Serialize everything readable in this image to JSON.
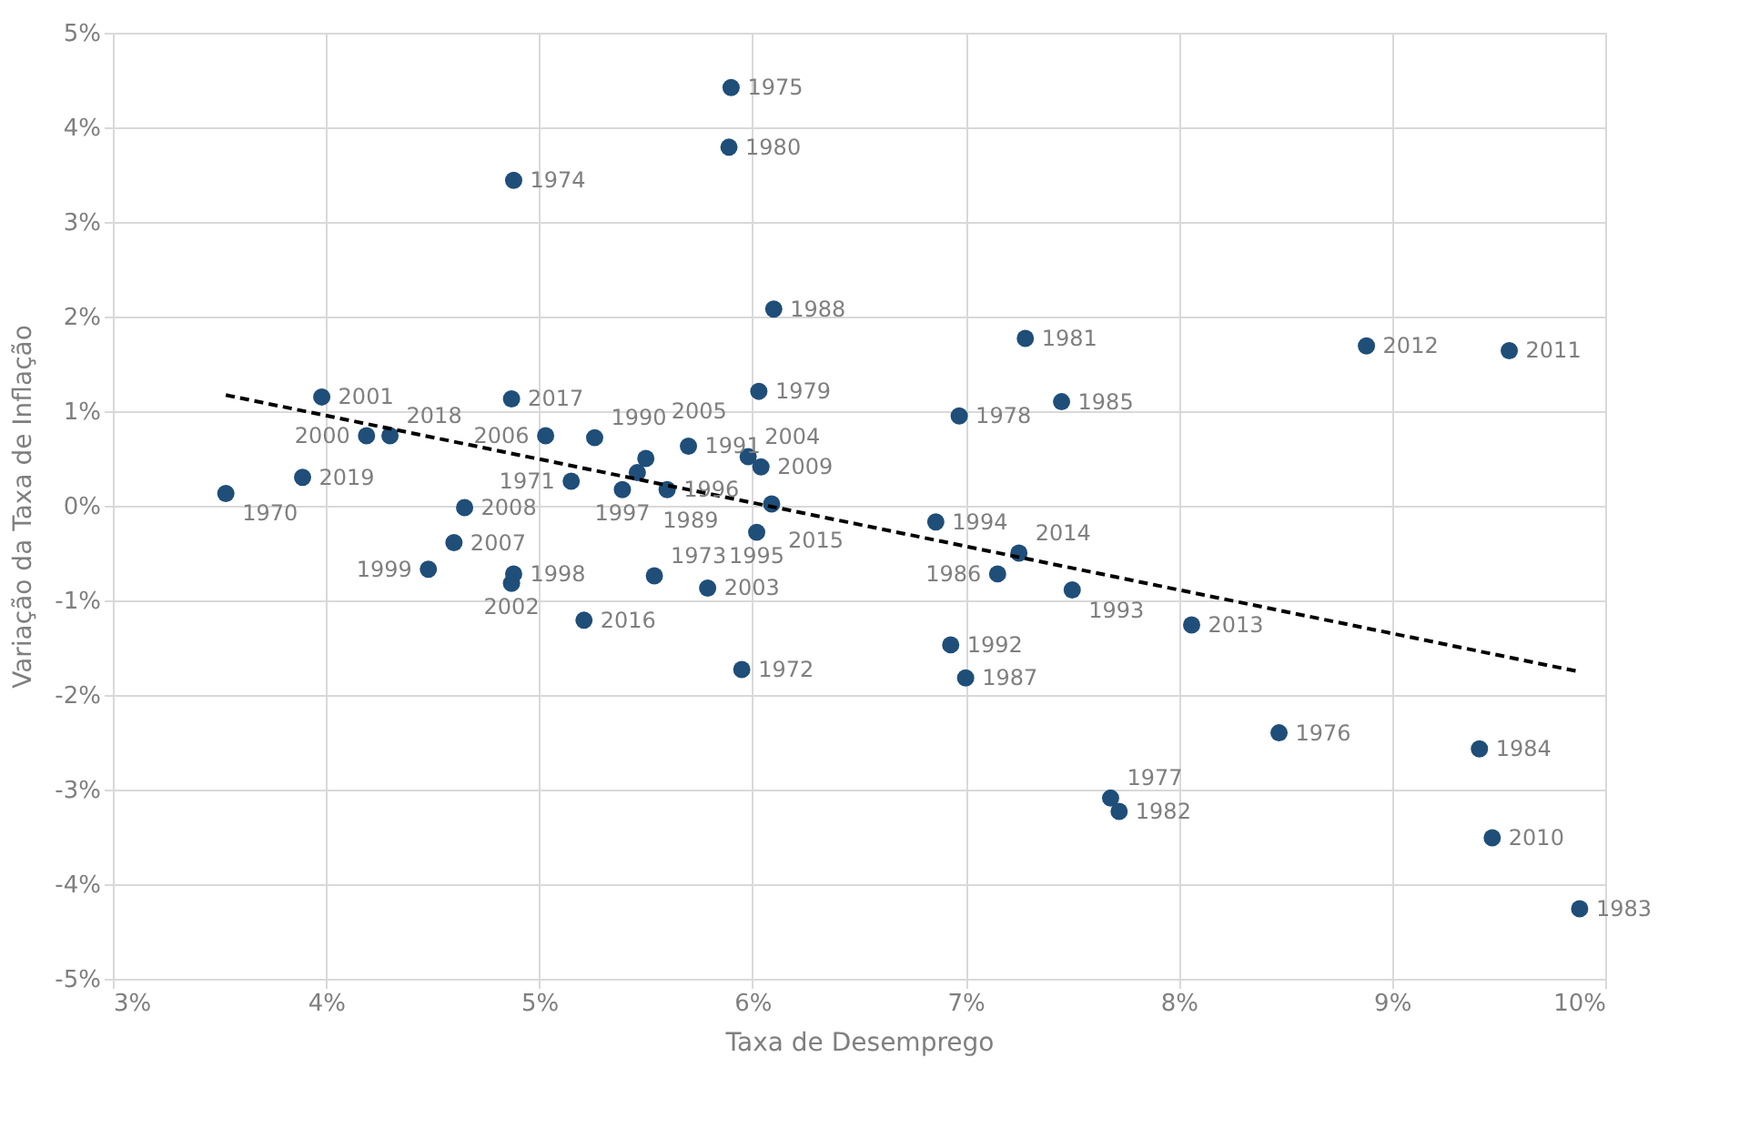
{
  "chart_data": {
    "type": "scatter",
    "xlabel": "Taxa de Desemprego",
    "ylabel": "Variação da Taxa de Inflação",
    "xlim": [
      3,
      10
    ],
    "ylim": [
      -5,
      5
    ],
    "xticks": [
      {
        "value": 3,
        "label": "3%"
      },
      {
        "value": 4,
        "label": "4%"
      },
      {
        "value": 5,
        "label": "5%"
      },
      {
        "value": 6,
        "label": "6%"
      },
      {
        "value": 7,
        "label": "7%"
      },
      {
        "value": 8,
        "label": "8%"
      },
      {
        "value": 9,
        "label": "9%"
      },
      {
        "value": 10,
        "label": "10%"
      }
    ],
    "yticks": [
      {
        "value": -5,
        "label": "-5%"
      },
      {
        "value": -4,
        "label": "-4%"
      },
      {
        "value": -3,
        "label": "-3%"
      },
      {
        "value": -2,
        "label": "-2%"
      },
      {
        "value": -1,
        "label": "-1%"
      },
      {
        "value": 0,
        "label": "0%"
      },
      {
        "value": 1,
        "label": "1%"
      },
      {
        "value": 2,
        "label": "2%"
      },
      {
        "value": 3,
        "label": "3%"
      },
      {
        "value": 4,
        "label": "4%"
      },
      {
        "value": 5,
        "label": "5%"
      }
    ],
    "grid": true,
    "marker": "circle",
    "series": [
      {
        "color": "#1f4e79",
        "x": [
          5.9,
          5.89,
          4.88,
          6.1,
          7.28,
          8.88,
          9.55,
          6.03,
          3.98,
          4.87,
          6.97,
          7.45,
          4.19,
          4.3,
          5.03,
          5.26,
          5.5,
          5.7,
          5.98,
          6.04,
          5.46,
          5.15,
          5.39,
          5.6,
          6.09,
          6.02,
          3.53,
          3.89,
          4.65,
          4.6,
          4.48,
          4.88,
          4.87,
          5.54,
          5.79,
          5.21,
          5.95,
          6.86,
          7.25,
          7.15,
          7.5,
          6.93,
          7.0,
          8.06,
          8.47,
          7.68,
          7.72,
          9.41,
          9.47,
          9.88
        ],
        "values": [
          4.42,
          3.79,
          3.44,
          2.08,
          1.77,
          1.69,
          1.64,
          1.21,
          1.15,
          1.13,
          0.95,
          1.1,
          0.74,
          0.74,
          0.74,
          0.72,
          0.5,
          0.63,
          0.52,
          0.41,
          0.35,
          0.26,
          0.17,
          0.17,
          0.02,
          -0.28,
          0.13,
          0.3,
          -0.02,
          -0.39,
          -0.67,
          -0.72,
          -0.82,
          -0.74,
          -0.87,
          -1.21,
          -1.73,
          -0.17,
          -0.5,
          -0.72,
          -0.89,
          -1.47,
          -1.82,
          -1.26,
          -2.4,
          -3.09,
          -3.23,
          -2.57,
          -3.51,
          -4.26
        ]
      },
      {
        "type": "line",
        "color": "#000000",
        "line_style": "dashed",
        "marker": "none",
        "x": [
          3.53,
          9.87
        ],
        "values": [
          1.17,
          -1.75
        ]
      }
    ],
    "annotations": [
      {
        "text": "1975",
        "x": 5.9,
        "y": 4.42
      },
      {
        "text": "1980",
        "x": 5.89,
        "y": 3.79
      },
      {
        "text": "1974",
        "x": 4.88,
        "y": 3.44
      },
      {
        "text": "1988",
        "x": 6.1,
        "y": 2.08
      },
      {
        "text": "1981",
        "x": 7.28,
        "y": 1.77
      },
      {
        "text": "2012",
        "x": 8.88,
        "y": 1.69
      },
      {
        "text": "2011",
        "x": 9.55,
        "y": 1.64
      },
      {
        "text": "1979",
        "x": 6.03,
        "y": 1.21
      },
      {
        "text": "2001",
        "x": 3.98,
        "y": 1.15
      },
      {
        "text": "2017",
        "x": 4.87,
        "y": 1.13
      },
      {
        "text": "1978",
        "x": 6.97,
        "y": 0.95
      },
      {
        "text": "1985",
        "x": 7.45,
        "y": 1.1
      },
      {
        "text": "2000",
        "x": 4.19,
        "y": 0.74
      },
      {
        "text": "2018",
        "x": 4.3,
        "y": 0.74
      },
      {
        "text": "2006",
        "x": 5.03,
        "y": 0.74
      },
      {
        "text": "1990",
        "x": 5.26,
        "y": 0.72
      },
      {
        "text": "2005",
        "x": 5.5,
        "y": 0.5
      },
      {
        "text": "1991",
        "x": 5.7,
        "y": 0.63
      },
      {
        "text": "2004",
        "x": 5.98,
        "y": 0.52
      },
      {
        "text": "2009",
        "x": 6.04,
        "y": 0.41
      },
      {
        "text": "1989",
        "x": 5.46,
        "y": 0.35
      },
      {
        "text": "1971",
        "x": 5.15,
        "y": 0.26
      },
      {
        "text": "1997",
        "x": 5.39,
        "y": 0.17
      },
      {
        "text": "1996",
        "x": 5.6,
        "y": 0.17
      },
      {
        "text": "2015",
        "x": 6.09,
        "y": 0.02
      },
      {
        "text": "1995",
        "x": 6.02,
        "y": -0.28
      },
      {
        "text": "1970",
        "x": 3.53,
        "y": 0.13
      },
      {
        "text": "2019",
        "x": 3.89,
        "y": 0.3
      },
      {
        "text": "2008",
        "x": 4.65,
        "y": -0.02
      },
      {
        "text": "2007",
        "x": 4.6,
        "y": -0.39
      },
      {
        "text": "1999",
        "x": 4.48,
        "y": -0.67
      },
      {
        "text": "1998",
        "x": 4.88,
        "y": -0.72
      },
      {
        "text": "2002",
        "x": 4.87,
        "y": -0.82
      },
      {
        "text": "1973",
        "x": 5.54,
        "y": -0.74
      },
      {
        "text": "2003",
        "x": 5.79,
        "y": -0.87
      },
      {
        "text": "2016",
        "x": 5.21,
        "y": -1.21
      },
      {
        "text": "1972",
        "x": 5.95,
        "y": -1.73
      },
      {
        "text": "1994",
        "x": 6.86,
        "y": -0.17
      },
      {
        "text": "2014",
        "x": 7.25,
        "y": -0.5
      },
      {
        "text": "1986",
        "x": 7.15,
        "y": -0.72
      },
      {
        "text": "1993",
        "x": 7.5,
        "y": -0.89
      },
      {
        "text": "1992",
        "x": 6.93,
        "y": -1.47
      },
      {
        "text": "1987",
        "x": 7.0,
        "y": -1.82
      },
      {
        "text": "2013",
        "x": 8.06,
        "y": -1.26
      },
      {
        "text": "1976",
        "x": 8.47,
        "y": -2.4
      },
      {
        "text": "1977",
        "x": 7.68,
        "y": -3.09
      },
      {
        "text": "1982",
        "x": 7.72,
        "y": -3.23
      },
      {
        "text": "1984",
        "x": 9.41,
        "y": -2.57
      },
      {
        "text": "2010",
        "x": 9.47,
        "y": -3.51
      },
      {
        "text": "1983",
        "x": 9.88,
        "y": -4.26
      }
    ]
  }
}
